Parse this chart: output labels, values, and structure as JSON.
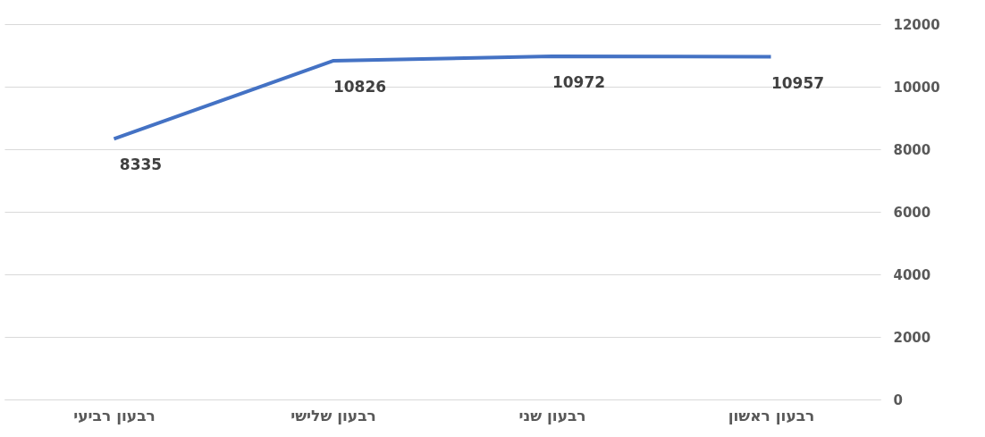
{
  "chart_data": {
    "type": "line",
    "categories": [
      "רבעון רביעי",
      "רבעון שלישי",
      "רבעון שני",
      "רבעון ראשון"
    ],
    "series": [
      {
        "color": "#4472c4",
        "values": [
          8335,
          10826,
          10972,
          10957
        ]
      }
    ],
    "ylim": [
      0,
      12000
    ],
    "yticks": [
      0,
      2000,
      4000,
      6000,
      8000,
      10000,
      12000
    ],
    "grid": "y",
    "data_labels": true,
    "marker": "none",
    "line_style": "solid"
  }
}
